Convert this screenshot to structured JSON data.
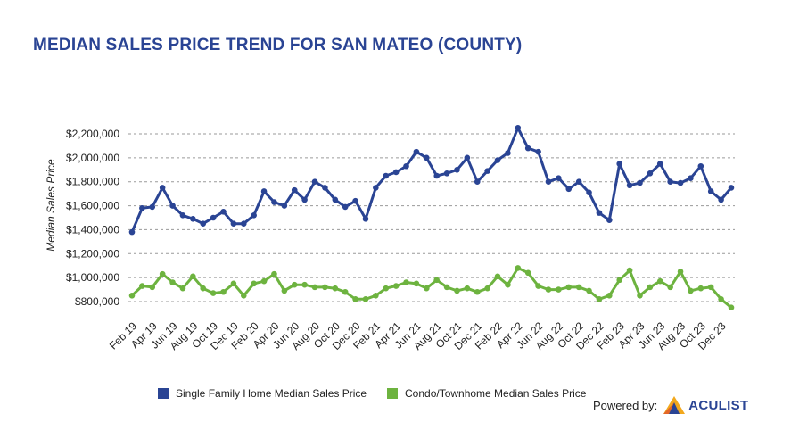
{
  "title": "MEDIAN SALES PRICE TREND FOR SAN MATEO (COUNTY)",
  "powered_by": "Powered by:",
  "logo_text": "ACULIST",
  "chart_data": {
    "type": "line",
    "ylabel": "Median Sales Price",
    "xlabel": "",
    "ylim": [
      700000,
      2300000
    ],
    "yticks": [
      800000,
      1000000,
      1200000,
      1400000,
      1600000,
      1800000,
      2000000,
      2200000
    ],
    "ytick_labels": [
      "$800,000",
      "$1,000,000",
      "$1,200,000",
      "$1,400,000",
      "$1,600,000",
      "$1,800,000",
      "$2,000,000",
      "$2,200,000"
    ],
    "grid": true,
    "legend_position": "bottom",
    "categories": [
      "Feb 19",
      "Mar 19",
      "Apr 19",
      "May 19",
      "Jun 19",
      "Jul 19",
      "Aug 19",
      "Sep 19",
      "Oct 19",
      "Nov 19",
      "Dec 19",
      "Jan 20",
      "Feb 20",
      "Mar 20",
      "Apr 20",
      "May 20",
      "Jun 20",
      "Jul 20",
      "Aug 20",
      "Sep 20",
      "Oct 20",
      "Nov 20",
      "Dec 20",
      "Jan 21",
      "Feb 21",
      "Mar 21",
      "Apr 21",
      "May 21",
      "Jun 21",
      "Jul 21",
      "Aug 21",
      "Sep 21",
      "Oct 21",
      "Nov 21",
      "Dec 21",
      "Jan 22",
      "Feb 22",
      "Mar 22",
      "Apr 22",
      "May 22",
      "Jun 22",
      "Jul 22",
      "Aug 22",
      "Sep 22",
      "Oct 22",
      "Nov 22",
      "Dec 22",
      "Jan 23",
      "Feb 23",
      "Mar 23",
      "Apr 23",
      "May 23",
      "Jun 23",
      "Jul 23",
      "Aug 23",
      "Sep 23",
      "Oct 23",
      "Nov 23",
      "Dec 23",
      "Jan 24"
    ],
    "xtick_labels": [
      "Feb 19",
      "Apr 19",
      "Jun 19",
      "Aug 19",
      "Oct 19",
      "Dec 19",
      "Feb 20",
      "Apr 20",
      "Jun 20",
      "Aug 20",
      "Oct 20",
      "Dec 20",
      "Feb 21",
      "Apr 21",
      "Jun 21",
      "Aug 21",
      "Oct 21",
      "Dec 21",
      "Feb 22",
      "Apr 22",
      "Jun 22",
      "Aug 22",
      "Oct 22",
      "Dec 22",
      "Feb 23",
      "Apr 23",
      "Jun 23",
      "Aug 23",
      "Oct 23",
      "Dec 23"
    ],
    "series": [
      {
        "name": "Single Family Home Median Sales Price",
        "color": "#2a4494",
        "values": [
          1380000,
          1580000,
          1590000,
          1750000,
          1600000,
          1520000,
          1490000,
          1450000,
          1500000,
          1550000,
          1450000,
          1450000,
          1520000,
          1720000,
          1630000,
          1600000,
          1730000,
          1650000,
          1800000,
          1750000,
          1650000,
          1590000,
          1640000,
          1490000,
          1750000,
          1850000,
          1880000,
          1930000,
          2050000,
          2000000,
          1850000,
          1870000,
          1900000,
          2000000,
          1800000,
          1890000,
          1980000,
          2040000,
          2250000,
          2080000,
          2050000,
          1800000,
          1830000,
          1740000,
          1800000,
          1710000,
          1540000,
          1480000,
          1950000,
          1770000,
          1790000,
          1870000,
          1950000,
          1800000,
          1790000,
          1830000,
          1930000,
          1720000,
          1650000,
          1750000
        ]
      },
      {
        "name": "Condo/Townhome Median Sales Price",
        "color": "#6db33f",
        "values": [
          850000,
          930000,
          920000,
          1030000,
          960000,
          910000,
          1010000,
          910000,
          870000,
          880000,
          950000,
          850000,
          950000,
          970000,
          1030000,
          890000,
          940000,
          940000,
          920000,
          920000,
          910000,
          880000,
          820000,
          820000,
          850000,
          910000,
          930000,
          960000,
          950000,
          910000,
          980000,
          920000,
          890000,
          910000,
          880000,
          910000,
          1010000,
          940000,
          1080000,
          1040000,
          930000,
          900000,
          900000,
          920000,
          920000,
          890000,
          820000,
          850000,
          980000,
          1060000,
          850000,
          920000,
          970000,
          920000,
          1050000,
          890000,
          910000,
          920000,
          820000,
          750000
        ]
      }
    ]
  }
}
